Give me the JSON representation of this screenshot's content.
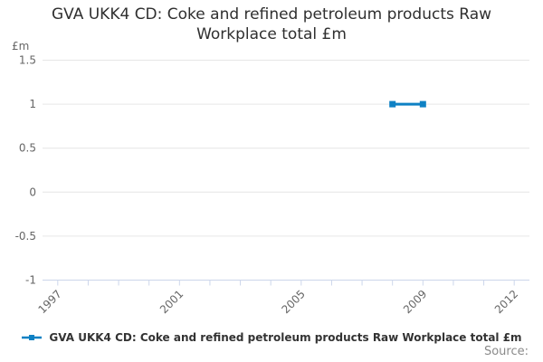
{
  "chart": {
    "source_label": "Source:",
    "colors": {
      "series_blue": "#0e81c4",
      "gridline": "#e6e6e6",
      "axis_line": "#ccd6eb",
      "tick_mark": "#ccd6eb",
      "title_text": "#2f2f2f",
      "axis_label_text": "#666666",
      "legend_text": "#333333",
      "source_text": "#8a8a8a",
      "background": "#ffffff"
    }
  },
  "chart_data": {
    "type": "line",
    "title": "GVA UKK4 CD: Coke and refined petroleum products Raw Workplace total £m",
    "xlabel": "",
    "ylabel": "£m",
    "series": [
      {
        "name": "GVA UKK4 CD: Coke and refined petroleum products Raw Workplace total £m",
        "x": [
          2008,
          2009
        ],
        "values": [
          1,
          1
        ],
        "color": "#0e81c4",
        "marker": "square"
      }
    ],
    "xlim": [
      1996.5,
      2012.5
    ],
    "ylim": [
      -1,
      1.5
    ],
    "yticks": [
      1.5,
      1,
      0.5,
      0,
      -0.5,
      -1
    ],
    "xticks": [
      1997,
      1998,
      1999,
      2000,
      2001,
      2002,
      2003,
      2004,
      2005,
      2006,
      2007,
      2008,
      2009,
      2010,
      2011,
      2012
    ],
    "xtick_labels": [
      "1997",
      "2001",
      "2005",
      "2009",
      "2012"
    ],
    "xtick_label_rotation": -45,
    "grid": "horizontal-only",
    "legend_position": "bottom-center"
  }
}
